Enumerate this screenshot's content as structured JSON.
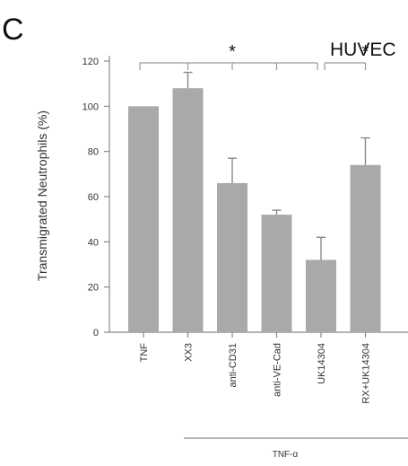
{
  "panel_label": "C",
  "chart_data": {
    "type": "bar",
    "title": "HUVEC",
    "ylabel": "Transmigrated Neutrophils (%)",
    "xlabel": "",
    "ylim": [
      0,
      120
    ],
    "yticks": [
      0,
      20,
      40,
      60,
      80,
      100,
      120
    ],
    "categories": [
      "TNF",
      "XX3",
      "anti-CD31",
      "anti-VE-Cad",
      "UK14304",
      "RX+UK14304"
    ],
    "values": [
      100,
      108,
      66,
      52,
      32,
      74
    ],
    "errors": [
      0,
      7,
      11,
      2,
      10,
      12
    ],
    "group_label": "TNF-α",
    "significance": [
      {
        "label": "*",
        "from": 0,
        "to": 4,
        "mark": 2
      },
      {
        "label": "*",
        "from": 4,
        "to": 5,
        "mark": 5
      }
    ],
    "grid": false,
    "colors": {
      "bar": "#a9a9a9",
      "axis": "#888888"
    }
  }
}
